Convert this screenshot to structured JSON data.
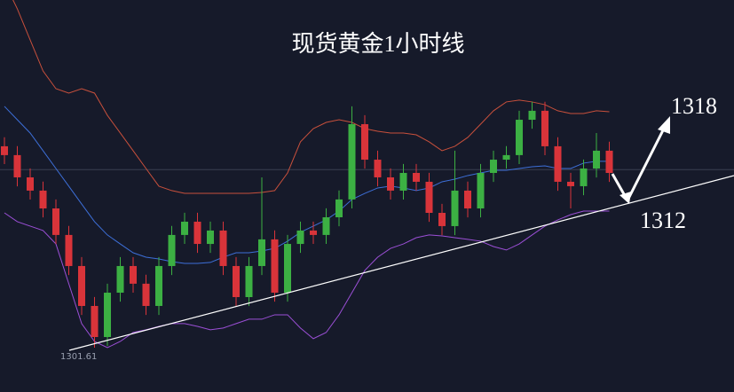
{
  "chart_data": {
    "type": "candlestick",
    "title": "现货黄金1小时线",
    "annotations": [
      "1318",
      "1312",
      "1301.61"
    ],
    "categories": [
      null,
      null,
      null,
      null,
      null,
      null,
      null,
      null,
      null,
      null,
      null,
      null,
      null,
      null,
      null,
      null,
      null,
      null,
      null,
      null,
      null,
      null,
      null,
      null,
      null,
      null,
      null,
      null,
      null,
      null,
      null,
      null,
      null,
      null,
      null,
      null,
      null,
      null,
      null,
      null,
      null,
      null,
      null,
      null,
      null,
      null,
      null,
      null
    ],
    "open": [
      1316.19,
      1315.55,
      1313.94,
      1312.98,
      1311.69,
      1309.77,
      1307.52,
      1304.63,
      1302.38,
      1305.59,
      1307.52,
      1306.24,
      1304.63,
      1307.52,
      1309.77,
      1310.73,
      1309.12,
      1310.09,
      1307.52,
      1305.27,
      1307.52,
      1309.45,
      1305.59,
      1309.12,
      1310.09,
      1309.77,
      1311.05,
      1312.34,
      1317.79,
      1315.22,
      1313.94,
      1312.98,
      1314.26,
      1313.62,
      1311.37,
      1310.41,
      1312.98,
      1311.69,
      1314.26,
      1315.22,
      1315.55,
      1318.11,
      1318.76,
      1316.19,
      1313.62,
      1313.3,
      1314.58,
      1315.87
    ],
    "high": [
      1316.84,
      1316.2,
      1314.59,
      1313.63,
      1312.34,
      1310.42,
      1308.17,
      1305.28,
      1306.24,
      1308.17,
      1308.17,
      1306.89,
      1308.17,
      1310.42,
      1311.38,
      1311.38,
      1310.74,
      1310.74,
      1308.17,
      1308.17,
      1313.94,
      1310.1,
      1309.77,
      1310.74,
      1310.74,
      1311.7,
      1312.99,
      1319.08,
      1318.44,
      1315.87,
      1314.59,
      1314.91,
      1314.91,
      1314.27,
      1312.02,
      1315.87,
      1313.63,
      1314.91,
      1315.87,
      1316.2,
      1318.76,
      1319.41,
      1319.41,
      1316.84,
      1314.27,
      1315.23,
      1317.15,
      1316.52
    ],
    "low": [
      1314.9,
      1313.29,
      1312.33,
      1311.04,
      1309.12,
      1306.87,
      1303.98,
      1301.61,
      1301.73,
      1304.94,
      1305.59,
      1303.98,
      1303.98,
      1306.87,
      1309.12,
      1308.47,
      1308.47,
      1306.87,
      1304.62,
      1304.62,
      1306.87,
      1304.94,
      1304.94,
      1308.47,
      1309.12,
      1309.12,
      1310.4,
      1311.69,
      1314.57,
      1313.29,
      1312.33,
      1312.33,
      1312.97,
      1310.72,
      1309.76,
      1309.76,
      1311.04,
      1311.04,
      1313.61,
      1314.57,
      1314.9,
      1317.46,
      1315.54,
      1312.97,
      1311.69,
      1312.65,
      1313.93,
      1313.61
    ],
    "close": [
      1315.55,
      1313.94,
      1312.98,
      1311.69,
      1309.77,
      1307.52,
      1304.63,
      1302.38,
      1305.59,
      1307.52,
      1306.24,
      1304.63,
      1307.52,
      1309.77,
      1310.73,
      1309.12,
      1310.09,
      1307.52,
      1305.27,
      1307.52,
      1309.45,
      1305.59,
      1309.12,
      1310.09,
      1309.77,
      1311.05,
      1312.34,
      1317.79,
      1315.22,
      1313.94,
      1312.98,
      1314.26,
      1313.62,
      1311.37,
      1310.41,
      1312.98,
      1311.69,
      1314.26,
      1315.22,
      1315.55,
      1318.11,
      1318.76,
      1316.19,
      1313.62,
      1313.3,
      1314.58,
      1315.87,
      1314.26
    ],
    "up_color": "#3cb043",
    "down_color": "#d9343a",
    "overlays": [
      {
        "color": "#c8503c",
        "values": [
          1328.06,
          1326.14,
          1323.89,
          1321.64,
          1320.36,
          1320.04,
          1320.36,
          1320.04,
          1318.43,
          1317.15,
          1315.87,
          1314.58,
          1313.3,
          1312.98,
          1312.78,
          1312.78,
          1312.78,
          1312.78,
          1312.78,
          1312.78,
          1312.85,
          1312.98,
          1314.26,
          1316.51,
          1317.47,
          1317.92,
          1318.11,
          1317.92,
          1317.47,
          1317.28,
          1317.15,
          1317.15,
          1317.02,
          1316.51,
          1315.87,
          1316.19,
          1316.83,
          1317.79,
          1318.76,
          1319.4,
          1319.53,
          1319.4,
          1319.2,
          1318.76,
          1318.56,
          1318.56,
          1318.76,
          1318.69
        ]
      },
      {
        "color": "#3d6fd8",
        "values": [
          1319.08,
          1318.11,
          1317.15,
          1315.87,
          1314.58,
          1313.3,
          1312.01,
          1310.73,
          1309.77,
          1309.12,
          1308.48,
          1308.16,
          1308.03,
          1307.84,
          1307.71,
          1307.71,
          1307.78,
          1308.16,
          1308.48,
          1308.48,
          1308.61,
          1308.8,
          1309.32,
          1309.96,
          1310.41,
          1310.86,
          1311.5,
          1312.34,
          1312.78,
          1313.17,
          1313.3,
          1313.17,
          1312.98,
          1313.17,
          1313.62,
          1313.81,
          1314.07,
          1314.26,
          1314.45,
          1314.45,
          1314.58,
          1314.71,
          1314.77,
          1314.58,
          1314.58,
          1314.97,
          1315.1,
          1315.1
        ]
      },
      {
        "color": "#9b4fd6",
        "values": [
          1311.37,
          1310.73,
          1310.41,
          1310.09,
          1309.12,
          1306.24,
          1303.35,
          1302.06,
          1301.61,
          1302.06,
          1302.71,
          1302.9,
          1303.15,
          1303.35,
          1303.35,
          1303.15,
          1302.9,
          1303.03,
          1303.35,
          1303.67,
          1303.67,
          1303.99,
          1303.99,
          1303.03,
          1302.26,
          1302.71,
          1303.99,
          1305.59,
          1307.2,
          1308.16,
          1308.8,
          1309.12,
          1309.57,
          1309.77,
          1309.7,
          1309.57,
          1309.45,
          1309.32,
          1308.93,
          1308.68,
          1309.12,
          1309.77,
          1310.41,
          1310.86,
          1311.24,
          1311.5,
          1311.5,
          1311.5
        ]
      }
    ],
    "hline": 1314.5,
    "ylim": [
      1298.4,
      1326.78
    ]
  }
}
